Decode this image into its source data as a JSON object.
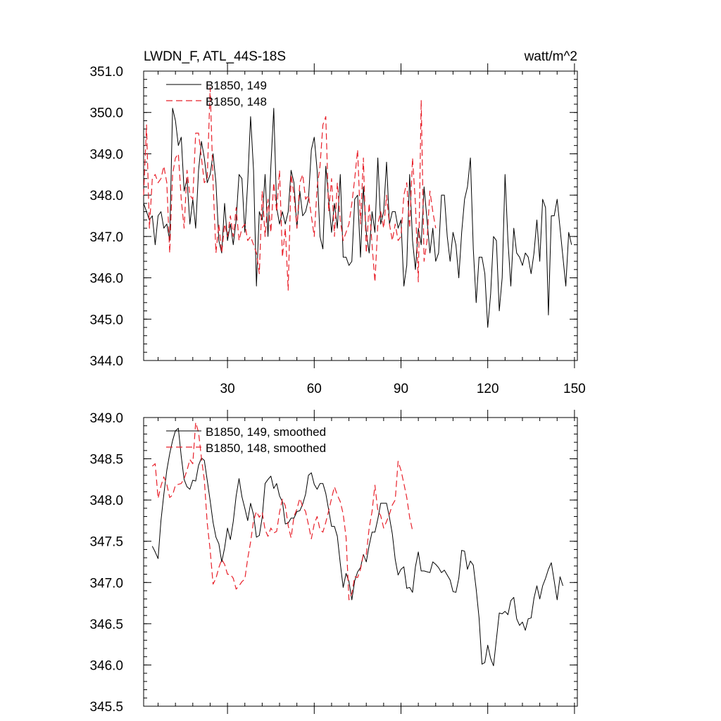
{
  "chart_data": [
    {
      "type": "line",
      "title": "LWDN_F, ATL_44S-18S",
      "units": "watt/m^2",
      "xlim": [
        1,
        151
      ],
      "ylim": [
        344.0,
        351.0
      ],
      "xticks": [
        30,
        60,
        90,
        120,
        150
      ],
      "xtick_labels": [
        "30",
        "60",
        "90",
        "120",
        "150"
      ],
      "yticks": [
        344,
        345,
        346,
        347,
        348,
        349,
        350,
        351
      ],
      "ytick_labels": [
        "344.0",
        "345.0",
        "346.0",
        "347.0",
        "348.0",
        "349.0",
        "350.0",
        "351.0"
      ],
      "series": [
        {
          "name": "B1850, 149",
          "color": "#000000",
          "dash": "solid",
          "x_start": 1,
          "values": [
            347.8,
            347.6,
            347.4,
            347.5,
            346.8,
            347.5,
            347.6,
            347.2,
            347.3,
            346.9,
            350.1,
            349.8,
            349.2,
            349.4,
            348.1,
            348.4,
            347.3,
            347.9,
            347.2,
            348.6,
            349.3,
            348.9,
            348.3,
            348.5,
            349.0,
            348.3,
            346.9,
            346.6,
            347.8,
            346.9,
            347.3,
            346.8,
            347.4,
            348.5,
            348.4,
            347.1,
            348.3,
            349.9,
            348.6,
            345.8,
            347.6,
            347.4,
            348.5,
            347.0,
            348.7,
            350.1,
            347.7,
            347.3,
            347.6,
            347.3,
            347.6,
            348.6,
            348.3,
            347.2,
            348.1,
            347.5,
            347.6,
            347.9,
            349.1,
            349.4,
            348.6,
            347.0,
            346.7,
            348.7,
            347.9,
            347.1,
            347.8,
            347.2,
            348.5,
            346.5,
            346.5,
            346.3,
            346.4,
            347.9,
            348.0,
            346.5,
            348.2,
            347.1,
            346.6,
            347.6,
            347.1,
            348.9,
            347.3,
            347.6,
            348.8,
            347.3,
            347.6,
            347.6,
            347.2,
            347.4,
            345.8,
            346.3,
            348.5,
            346.9,
            346.2,
            347.2,
            346.8,
            348.2,
            347.4,
            346.6,
            347.2,
            346.4,
            346.6,
            348.0,
            348.0,
            347.0,
            346.4,
            347.1,
            346.8,
            346.0,
            347.1,
            347.9,
            348.2,
            348.9,
            346.7,
            345.4,
            346.5,
            346.5,
            346.1,
            344.8,
            345.6,
            347.0,
            346.9,
            345.2,
            346.0,
            348.5,
            346.9,
            345.8,
            347.2,
            346.6,
            346.5,
            346.3,
            346.6,
            346.5,
            346.1,
            346.6,
            347.4,
            346.4,
            347.9,
            347.7,
            345.1,
            347.5,
            347.5,
            347.9,
            347.2,
            346.5,
            345.8,
            347.1,
            346.8
          ]
        },
        {
          "name": "B1850, 148",
          "color": "#e8202a",
          "dash": "dashed",
          "x_start": 1,
          "values": [
            348.0,
            349.7,
            347.2,
            348.4,
            348.5,
            348.3,
            348.4,
            348.7,
            348.3,
            346.6,
            348.5,
            348.9,
            349.0,
            347.9,
            347.2,
            348.6,
            348.0,
            347.9,
            349.5,
            349.5,
            348.9,
            348.3,
            348.4,
            350.6,
            348.3,
            346.6,
            347.3,
            346.6,
            347.3,
            347.0,
            347.5,
            347.0,
            347.7,
            346.9,
            347.2,
            347.3,
            346.9,
            347.0,
            346.8,
            346.6,
            346.1,
            348.1,
            347.0,
            347.9,
            347.1,
            348.3,
            347.6,
            348.6,
            346.5,
            347.2,
            345.7,
            348.5,
            348.0,
            347.2,
            348.3,
            348.5,
            347.9,
            348.0,
            347.5,
            347.0,
            348.2,
            348.7,
            349.7,
            349.9,
            347.6,
            348.4,
            347.0,
            348.3,
            347.4,
            346.9,
            347.1,
            347.3,
            347.8,
            348.4,
            349.1,
            347.3,
            348.9,
            346.6,
            347.8,
            346.8,
            345.9,
            347.3,
            347.6,
            347.2,
            348.0,
            347.3,
            346.9,
            347.3,
            346.9,
            347.0,
            348.0,
            348.3,
            347.2,
            348.9,
            347.8,
            345.9,
            350.3,
            346.4,
            346.9,
            348.1,
            347.6,
            347.2
          ]
        }
      ]
    },
    {
      "type": "line",
      "title": "",
      "xlim": [
        1,
        151
      ],
      "ylim": [
        345.5,
        349.0
      ],
      "xticks": [
        30,
        60,
        90,
        120,
        150
      ],
      "xtick_labels": [],
      "yticks": [
        345.5,
        346.0,
        346.5,
        347.0,
        347.5,
        348.0,
        348.5,
        349.0
      ],
      "ytick_labels": [
        "345.5",
        "346.0",
        "346.5",
        "347.0",
        "347.5",
        "348.0",
        "348.5",
        "349.0"
      ],
      "series": [
        {
          "name": "B1850, 149, smoothed",
          "color": "#000000",
          "dash": "solid",
          "x_start": 4,
          "values": [
            347.44,
            347.37,
            347.29,
            347.75,
            348.07,
            348.36,
            348.56,
            348.72,
            348.84,
            348.87,
            348.53,
            348.25,
            348.16,
            348.13,
            348.24,
            348.23,
            348.42,
            348.51,
            348.48,
            348.24,
            347.99,
            347.73,
            347.55,
            347.47,
            347.25,
            347.42,
            347.66,
            347.52,
            347.74,
            348.05,
            348.26,
            348.04,
            347.9,
            347.75,
            347.96,
            347.82,
            347.55,
            347.57,
            347.79,
            348.2,
            348.25,
            348.29,
            348.14,
            348.2,
            348.05,
            347.98,
            347.71,
            347.72,
            347.78,
            347.78,
            347.86,
            347.87,
            347.95,
            348.07,
            348.3,
            348.33,
            348.19,
            348.13,
            348.2,
            348.2,
            348.08,
            347.88,
            347.68,
            347.68,
            347.56,
            347.23,
            346.94,
            347.11,
            347.01,
            346.79,
            347.02,
            347.13,
            347.18,
            347.34,
            347.25,
            347.45,
            347.61,
            347.61,
            347.77,
            347.96,
            347.96,
            347.96,
            347.79,
            347.59,
            347.28,
            347.09,
            347.16,
            347.19,
            346.93,
            346.94,
            346.88,
            347.19,
            347.37,
            347.14,
            347.14,
            347.13,
            347.12,
            347.25,
            347.22,
            347.18,
            347.12,
            347.15,
            347.09,
            347.03,
            346.89,
            346.88,
            347.05,
            347.39,
            347.38,
            347.16,
            347.26,
            347.21,
            346.92,
            346.57,
            346.01,
            346.03,
            346.24,
            346.08,
            345.99,
            346.31,
            346.63,
            346.62,
            346.65,
            346.61,
            346.78,
            346.82,
            346.56,
            346.48,
            346.52,
            346.42,
            346.56,
            346.57,
            346.81,
            346.96,
            346.8,
            346.96,
            347.05,
            347.16,
            347.24,
            347.02,
            346.79,
            347.07,
            346.96
          ]
        },
        {
          "name": "B1850, 148, smoothed",
          "color": "#e8202a",
          "dash": "dashed",
          "x_start": 4,
          "values": [
            348.41,
            348.44,
            348.02,
            348.17,
            348.28,
            348.19,
            348.03,
            348.06,
            348.18,
            348.19,
            348.2,
            348.26,
            348.36,
            348.49,
            348.44,
            348.94,
            348.82,
            348.51,
            348.24,
            347.72,
            347.39,
            346.98,
            347.05,
            347.18,
            347.28,
            347.22,
            347.1,
            347.1,
            347.05,
            346.92,
            346.96,
            347.01,
            347.04,
            347.29,
            347.49,
            347.75,
            347.86,
            347.79,
            347.85,
            347.64,
            347.56,
            347.66,
            347.6,
            347.62,
            347.85,
            348.01,
            347.93,
            347.69,
            347.54,
            347.8,
            347.89,
            348.02,
            347.92,
            347.86,
            347.7,
            347.53,
            347.71,
            347.8,
            347.64,
            347.61,
            347.73,
            347.87,
            348.02,
            348.16,
            348.06,
            347.98,
            347.83,
            347.55,
            346.79,
            346.87,
            347.07,
            347.06,
            347.16,
            347.34,
            347.34,
            347.66,
            347.86,
            348.18,
            347.87,
            347.81,
            347.66,
            347.74,
            347.83,
            347.94,
            348.0,
            348.47,
            348.36,
            348.2,
            348.03,
            347.79,
            347.63
          ]
        }
      ]
    }
  ],
  "panel1": {
    "title": "LWDN_F, ATL_44S-18S",
    "units": "watt/m^2",
    "legend": [
      "B1850, 149",
      "B1850, 148"
    ]
  },
  "panel2": {
    "legend": [
      "B1850, 149, smoothed",
      "B1850, 148, smoothed"
    ]
  }
}
